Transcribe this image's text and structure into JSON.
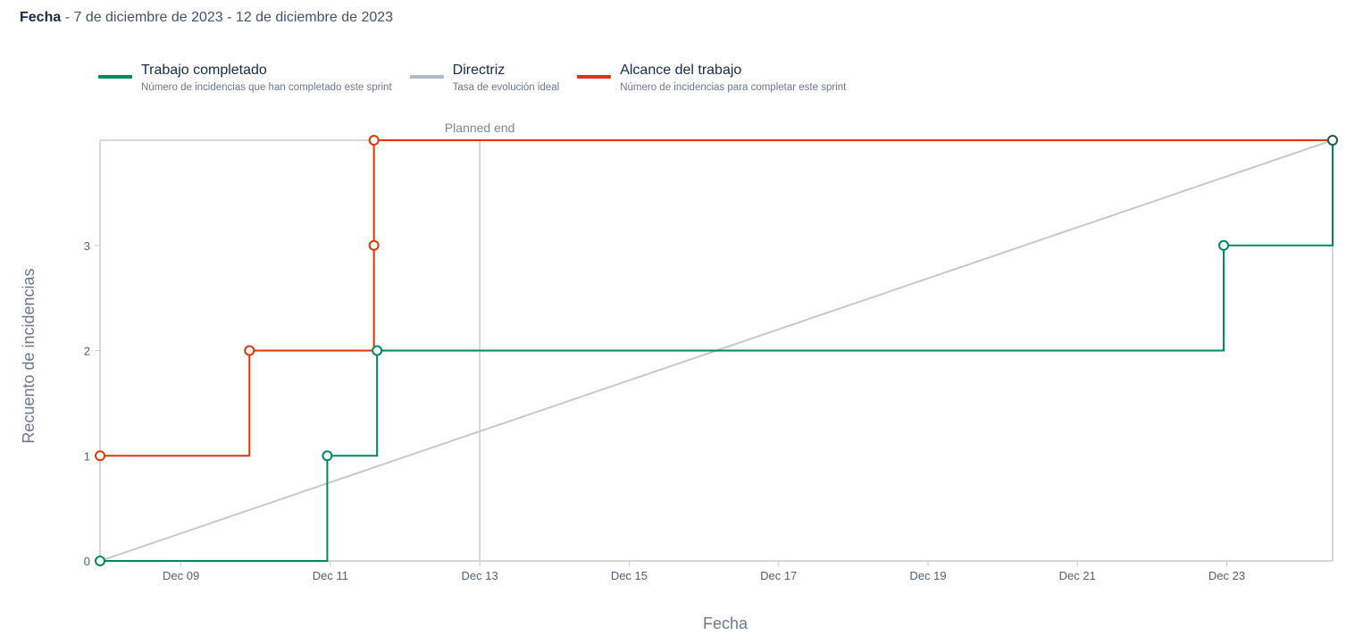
{
  "header": {
    "label": "Fecha",
    "range": " - 7 de diciembre de 2023 - 12 de diciembre de 2023"
  },
  "legend": [
    {
      "title": "Trabajo completado",
      "desc": "Número de incidencias que han completado este sprint",
      "color": "#00875a"
    },
    {
      "title": "Directriz",
      "desc": "Tasa de evolución ideal",
      "color": "#b3bac5"
    },
    {
      "title": "Alcance del trabajo",
      "desc": "Número de incidencias para completar este sprint",
      "color": "#de350b"
    }
  ],
  "chart_data": {
    "type": "line",
    "xlabel": "Fecha",
    "ylabel": "Recuento de incidencias",
    "xlim": [
      "2023-12-07T22:00",
      "2023-12-24T10:00"
    ],
    "ylim": [
      0,
      4
    ],
    "x_ticks": [
      {
        "date": "2023-12-09",
        "label": "Dec 09"
      },
      {
        "date": "2023-12-11",
        "label": "Dec 11"
      },
      {
        "date": "2023-12-13",
        "label": "Dec 13"
      },
      {
        "date": "2023-12-15",
        "label": "Dec 15"
      },
      {
        "date": "2023-12-17",
        "label": "Dec 17"
      },
      {
        "date": "2023-12-19",
        "label": "Dec 19"
      },
      {
        "date": "2023-12-21",
        "label": "Dec 21"
      },
      {
        "date": "2023-12-23",
        "label": "Dec 23"
      }
    ],
    "y_ticks": [
      "0",
      "1",
      "2",
      "3"
    ],
    "planned_end": {
      "date": "2023-12-13",
      "label": "Planned end"
    },
    "series": [
      {
        "name": "Alcance del trabajo",
        "color": "#de350b",
        "step": true,
        "points": [
          {
            "x": "2023-12-07T22:00",
            "y": 1
          },
          {
            "x": "2023-12-09T22:00",
            "y": 2
          },
          {
            "x": "2023-12-11T14:00",
            "y": 3
          },
          {
            "x": "2023-12-11T14:00",
            "y": 4
          }
        ],
        "end_x": "2023-12-24T10:00"
      },
      {
        "name": "Trabajo completado",
        "color": "#00875a",
        "step": true,
        "points": [
          {
            "x": "2023-12-07T22:00",
            "y": 0
          },
          {
            "x": "2023-12-10T23:00",
            "y": 1
          },
          {
            "x": "2023-12-11T15:00",
            "y": 2
          },
          {
            "x": "2023-12-22T23:00",
            "y": 3
          },
          {
            "x": "2023-12-24T10:00",
            "y": 4
          }
        ]
      },
      {
        "name": "Directriz",
        "color": "#c8c8c8",
        "step": false,
        "points": [
          {
            "x": "2023-12-07T22:00",
            "y": 0
          },
          {
            "x": "2023-12-24T10:00",
            "y": 4
          }
        ]
      }
    ]
  }
}
